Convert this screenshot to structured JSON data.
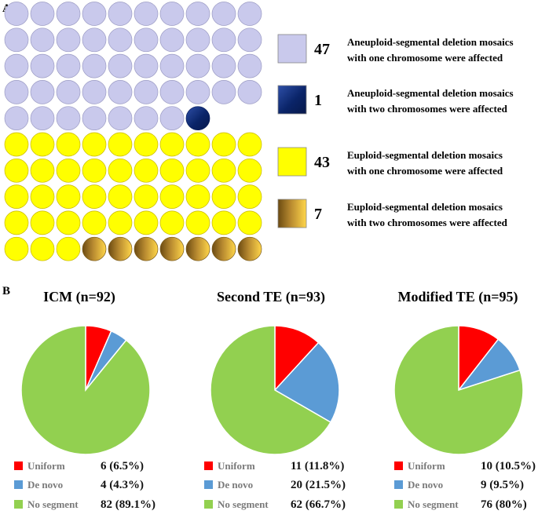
{
  "panels": {
    "a_label": "A",
    "b_label": "B"
  },
  "chart_data": [
    {
      "type": "waffle",
      "panel": "A",
      "grid": {
        "rows": 10,
        "cols": 10
      },
      "categories": [
        {
          "count": 47,
          "count_label": "47",
          "lines": [
            "Aneuploid-segmental deletion mosaics",
            "with one chromosome were affected"
          ],
          "color": "#c9c9ec",
          "style": "flat"
        },
        {
          "count": 1,
          "count_label": "1",
          "lines": [
            "Aneuploid-segmental deletion mosaics",
            "with two chromosomes were affected"
          ],
          "color": "#0c2a78",
          "style": "navy-gradient"
        },
        {
          "count": 43,
          "count_label": "43",
          "lines": [
            "Euploid-segmental deletion mosaics",
            "with one chromosome were affected"
          ],
          "color": "#ffff00",
          "style": "flat"
        },
        {
          "count": 7,
          "count_label": "7",
          "lines": [
            "Euploid-segmental deletion mosaics",
            "with two chromosomes were affected"
          ],
          "color": "#d2a53d",
          "style": "gold-gradient"
        }
      ],
      "empty_cells": 2
    },
    {
      "type": "pie",
      "panel": "B",
      "title": "ICM (n=92)",
      "slices": [
        {
          "label": "Uniform",
          "count": 6,
          "percent": 6.5,
          "value_label": "6 (6.5%)",
          "color": "#ff0000"
        },
        {
          "label": "De novo",
          "count": 4,
          "percent": 4.3,
          "value_label": "4 (4.3%)",
          "color": "#5b9bd5"
        },
        {
          "label": "No segment",
          "count": 82,
          "percent": 89.1,
          "value_label": "82 (89.1%)",
          "color": "#92d050"
        }
      ]
    },
    {
      "type": "pie",
      "panel": "B",
      "title": "Second TE (n=93)",
      "slices": [
        {
          "label": "Uniform",
          "count": 11,
          "percent": 11.8,
          "value_label": "11 (11.8%)",
          "color": "#ff0000"
        },
        {
          "label": "De novo",
          "count": 20,
          "percent": 21.5,
          "value_label": "20 (21.5%)",
          "color": "#5b9bd5"
        },
        {
          "label": "No segment",
          "count": 62,
          "percent": 66.7,
          "value_label": "62 (66.7%)",
          "color": "#92d050"
        }
      ]
    },
    {
      "type": "pie",
      "panel": "B",
      "title": "Modified TE (n=95)",
      "slices": [
        {
          "label": "Uniform",
          "count": 10,
          "percent": 10.5,
          "value_label": "10 (10.5%)",
          "color": "#ff0000"
        },
        {
          "label": "De novo",
          "count": 9,
          "percent": 9.5,
          "value_label": "9 (9.5%)",
          "color": "#5b9bd5"
        },
        {
          "label": "No segment",
          "count": 76,
          "percent": 80,
          "value_label": "76 (80%)",
          "color": "#92d050"
        }
      ]
    }
  ]
}
